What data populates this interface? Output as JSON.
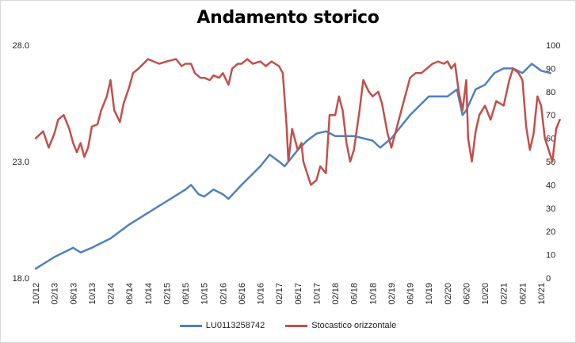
{
  "chart_data": {
    "type": "line",
    "title": "Andamento storico",
    "y_left": {
      "lim": [
        18.0,
        28.0
      ],
      "ticks": [
        "18.0",
        "23.0",
        "28.0"
      ]
    },
    "y_right": {
      "lim": [
        0,
        100
      ],
      "ticks": [
        "0",
        "10",
        "20",
        "30",
        "40",
        "50",
        "60",
        "70",
        "80",
        "90",
        "100"
      ]
    },
    "x_ticks": [
      "10/12",
      "02/13",
      "06/13",
      "10/13",
      "02/14",
      "06/14",
      "10/14",
      "02/15",
      "06/15",
      "10/15",
      "02/16",
      "06/16",
      "10/16",
      "02/17",
      "06/17",
      "10/17",
      "02/18",
      "06/18",
      "10/18",
      "02/19",
      "06/19",
      "10/19",
      "02/20",
      "06/20",
      "10/20",
      "02/21",
      "06/21",
      "10/21"
    ],
    "series": [
      {
        "name": "LU0113258742",
        "axis": "left",
        "color": "#4f81bd",
        "points": [
          [
            0,
            18.4
          ],
          [
            1,
            18.9
          ],
          [
            2,
            19.3
          ],
          [
            2.4,
            19.1
          ],
          [
            3,
            19.3
          ],
          [
            4,
            19.7
          ],
          [
            5,
            20.3
          ],
          [
            6,
            20.8
          ],
          [
            7,
            21.3
          ],
          [
            8,
            21.8
          ],
          [
            8.3,
            22.0
          ],
          [
            8.7,
            21.6
          ],
          [
            9,
            21.5
          ],
          [
            9.5,
            21.8
          ],
          [
            10,
            21.6
          ],
          [
            10.3,
            21.4
          ],
          [
            11,
            22.0
          ],
          [
            12,
            22.8
          ],
          [
            12.5,
            23.3
          ],
          [
            13,
            23.0
          ],
          [
            13.3,
            22.8
          ],
          [
            14,
            23.5
          ],
          [
            14.5,
            23.9
          ],
          [
            15,
            24.2
          ],
          [
            15.5,
            24.3
          ],
          [
            16,
            24.1
          ],
          [
            17,
            24.1
          ],
          [
            18,
            23.9
          ],
          [
            18.4,
            23.6
          ],
          [
            19,
            24.0
          ],
          [
            20,
            25.0
          ],
          [
            21,
            25.8
          ],
          [
            22,
            25.8
          ],
          [
            22.5,
            26.1
          ],
          [
            22.8,
            25.0
          ],
          [
            23,
            25.2
          ],
          [
            23.5,
            26.1
          ],
          [
            24,
            26.3
          ],
          [
            24.5,
            26.8
          ],
          [
            25,
            27.0
          ],
          [
            25.5,
            27.0
          ],
          [
            26,
            26.8
          ],
          [
            26.5,
            27.2
          ],
          [
            27,
            26.9
          ],
          [
            27.5,
            26.8
          ]
        ]
      },
      {
        "name": "Stocastico orizzontale",
        "axis": "right",
        "color": "#c0504d",
        "points": [
          [
            0,
            60
          ],
          [
            0.4,
            63
          ],
          [
            0.7,
            56
          ],
          [
            1,
            62
          ],
          [
            1.2,
            68
          ],
          [
            1.5,
            70
          ],
          [
            1.8,
            64
          ],
          [
            2,
            58
          ],
          [
            2.2,
            54
          ],
          [
            2.4,
            58
          ],
          [
            2.6,
            52
          ],
          [
            2.8,
            56
          ],
          [
            3,
            65
          ],
          [
            3.3,
            66
          ],
          [
            3.5,
            72
          ],
          [
            3.8,
            78
          ],
          [
            4,
            85
          ],
          [
            4.2,
            72
          ],
          [
            4.5,
            67
          ],
          [
            4.7,
            75
          ],
          [
            5,
            82
          ],
          [
            5.2,
            88
          ],
          [
            5.5,
            90
          ],
          [
            6,
            94
          ],
          [
            6.3,
            93
          ],
          [
            6.6,
            92
          ],
          [
            7,
            93
          ],
          [
            7.5,
            94
          ],
          [
            7.8,
            91
          ],
          [
            8,
            92
          ],
          [
            8.3,
            92
          ],
          [
            8.5,
            88
          ],
          [
            8.8,
            86
          ],
          [
            9,
            86
          ],
          [
            9.3,
            85
          ],
          [
            9.5,
            87
          ],
          [
            9.8,
            86
          ],
          [
            10,
            88
          ],
          [
            10.3,
            83
          ],
          [
            10.5,
            90
          ],
          [
            10.8,
            92
          ],
          [
            11,
            92
          ],
          [
            11.3,
            94
          ],
          [
            11.6,
            92
          ],
          [
            12,
            93
          ],
          [
            12.3,
            91
          ],
          [
            12.6,
            93
          ],
          [
            13,
            91
          ],
          [
            13.2,
            88
          ],
          [
            13.4,
            66
          ],
          [
            13.5,
            50
          ],
          [
            13.7,
            64
          ],
          [
            14,
            55
          ],
          [
            14.2,
            58
          ],
          [
            14.3,
            50
          ],
          [
            14.5,
            45
          ],
          [
            14.7,
            40
          ],
          [
            15,
            42
          ],
          [
            15.2,
            48
          ],
          [
            15.5,
            45
          ],
          [
            15.7,
            70
          ],
          [
            16,
            70
          ],
          [
            16.2,
            78
          ],
          [
            16.4,
            72
          ],
          [
            16.6,
            58
          ],
          [
            16.8,
            50
          ],
          [
            17,
            55
          ],
          [
            17.3,
            72
          ],
          [
            17.5,
            85
          ],
          [
            17.8,
            80
          ],
          [
            18,
            78
          ],
          [
            18.3,
            80
          ],
          [
            18.5,
            75
          ],
          [
            18.8,
            62
          ],
          [
            19,
            56
          ],
          [
            19.3,
            65
          ],
          [
            19.6,
            74
          ],
          [
            20,
            86
          ],
          [
            20.3,
            88
          ],
          [
            20.6,
            88
          ],
          [
            20.9,
            90
          ],
          [
            21.2,
            92
          ],
          [
            21.5,
            93
          ],
          [
            21.8,
            92
          ],
          [
            22,
            93
          ],
          [
            22.2,
            90
          ],
          [
            22.4,
            92
          ],
          [
            22.6,
            80
          ],
          [
            22.8,
            72
          ],
          [
            23,
            85
          ],
          [
            23.1,
            60
          ],
          [
            23.3,
            50
          ],
          [
            23.5,
            63
          ],
          [
            23.7,
            70
          ],
          [
            24,
            74
          ],
          [
            24.3,
            68
          ],
          [
            24.6,
            76
          ],
          [
            25,
            74
          ],
          [
            25.3,
            85
          ],
          [
            25.5,
            90
          ],
          [
            25.8,
            88
          ],
          [
            26,
            85
          ],
          [
            26.2,
            65
          ],
          [
            26.4,
            55
          ],
          [
            26.6,
            62
          ],
          [
            26.8,
            78
          ],
          [
            27,
            74
          ],
          [
            27.2,
            60
          ],
          [
            27.4,
            55
          ],
          [
            27.6,
            50
          ],
          [
            27.8,
            64
          ],
          [
            28,
            68
          ]
        ]
      }
    ]
  }
}
